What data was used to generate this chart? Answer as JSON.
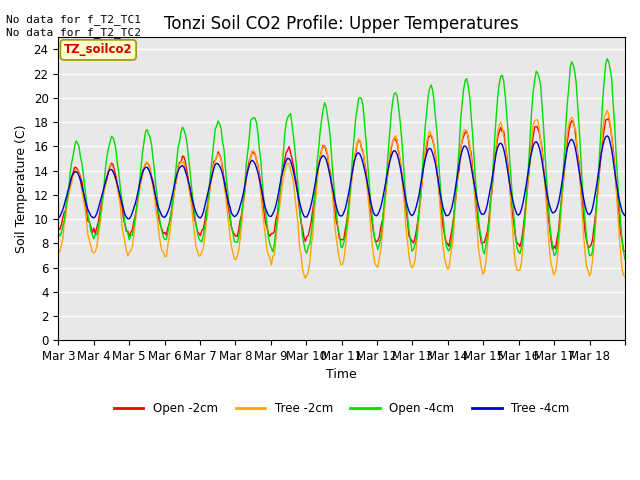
{
  "title": "Tonzi Soil CO2 Profile: Upper Temperatures",
  "xlabel": "Time",
  "ylabel": "Soil Temperature (C)",
  "ylim": [
    0,
    25
  ],
  "yticks": [
    0,
    2,
    4,
    6,
    8,
    10,
    12,
    14,
    16,
    18,
    20,
    22,
    24
  ],
  "x_labels": [
    "Mar 3",
    "Mar 4",
    "Mar 5",
    "Mar 6",
    "Mar 7",
    "Mar 8",
    "Mar 9",
    "Mar 10",
    "Mar 11",
    "Mar 12",
    "Mar 13",
    "Mar 14",
    "Mar 15",
    "Mar 16",
    "Mar 17",
    "Mar 18"
  ],
  "annotation_text": "No data for f_T2_TC1\nNo data for f_T2_TC2",
  "box_label": "TZ_soilco2",
  "legend_entries": [
    "Open -2cm",
    "Tree -2cm",
    "Open -4cm",
    "Tree -4cm"
  ],
  "colors": [
    "#ff0000",
    "#ffa500",
    "#00dd00",
    "#0000cc"
  ],
  "line_width": 1.0,
  "background_color": "#e8e8e8",
  "grid_color": "#ffffff",
  "title_fontsize": 12,
  "axis_fontsize": 9,
  "tick_fontsize": 8.5,
  "fig_width": 6.4,
  "fig_height": 4.8,
  "dpi": 100
}
